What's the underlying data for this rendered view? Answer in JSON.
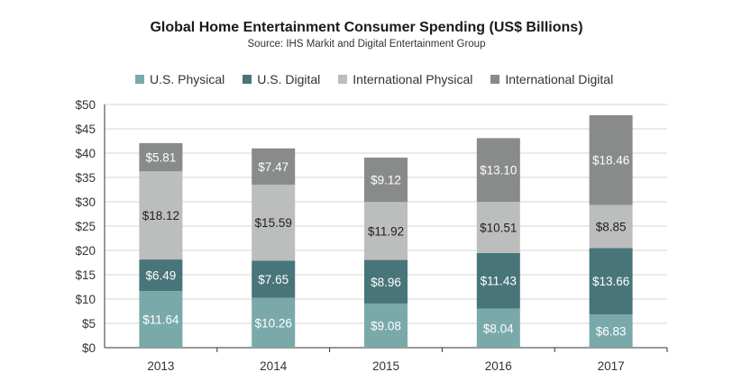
{
  "chart_data": {
    "type": "bar",
    "stacked": true,
    "title": "Global Home Entertainment Consumer Spending (US$ Billions)",
    "subtitle": "Source: IHS Markit and Digital Entertainment Group",
    "categories": [
      "2013",
      "2014",
      "2015",
      "2016",
      "2017"
    ],
    "ylim": [
      0,
      50
    ],
    "yticks": [
      0,
      5,
      10,
      15,
      20,
      25,
      30,
      35,
      40,
      45,
      50
    ],
    "ytick_labels": [
      "$0",
      "$5",
      "$10",
      "$15",
      "$20",
      "$25",
      "$30",
      "$35",
      "$40",
      "$45",
      "$50"
    ],
    "grid": true,
    "legend_position": "top",
    "series": [
      {
        "name": "U.S. Physical",
        "color": "#7aa9a9",
        "label_dark": false,
        "values": [
          11.64,
          10.26,
          9.08,
          8.04,
          6.83
        ],
        "labels": [
          "$11.64",
          "$10.26",
          "$9.08",
          "$8.04",
          "$6.83"
        ]
      },
      {
        "name": "U.S. Digital",
        "color": "#48757a",
        "label_dark": false,
        "values": [
          6.49,
          7.65,
          8.96,
          11.43,
          13.66
        ],
        "labels": [
          "$6.49",
          "$7.65",
          "$8.96",
          "$11.43",
          "$13.66"
        ]
      },
      {
        "name": "International Physical",
        "color": "#bcbebd",
        "label_dark": true,
        "values": [
          18.12,
          15.59,
          11.92,
          10.51,
          8.85
        ],
        "labels": [
          "$18.12",
          "$15.59",
          "$11.92",
          "$10.51",
          "$8.85"
        ]
      },
      {
        "name": "International Digital",
        "color": "#888b8a",
        "label_dark": false,
        "values": [
          5.81,
          7.47,
          9.12,
          13.1,
          18.46
        ],
        "labels": [
          "$5.81",
          "$7.47",
          "$9.12",
          "$13.10",
          "$18.46"
        ]
      }
    ]
  }
}
